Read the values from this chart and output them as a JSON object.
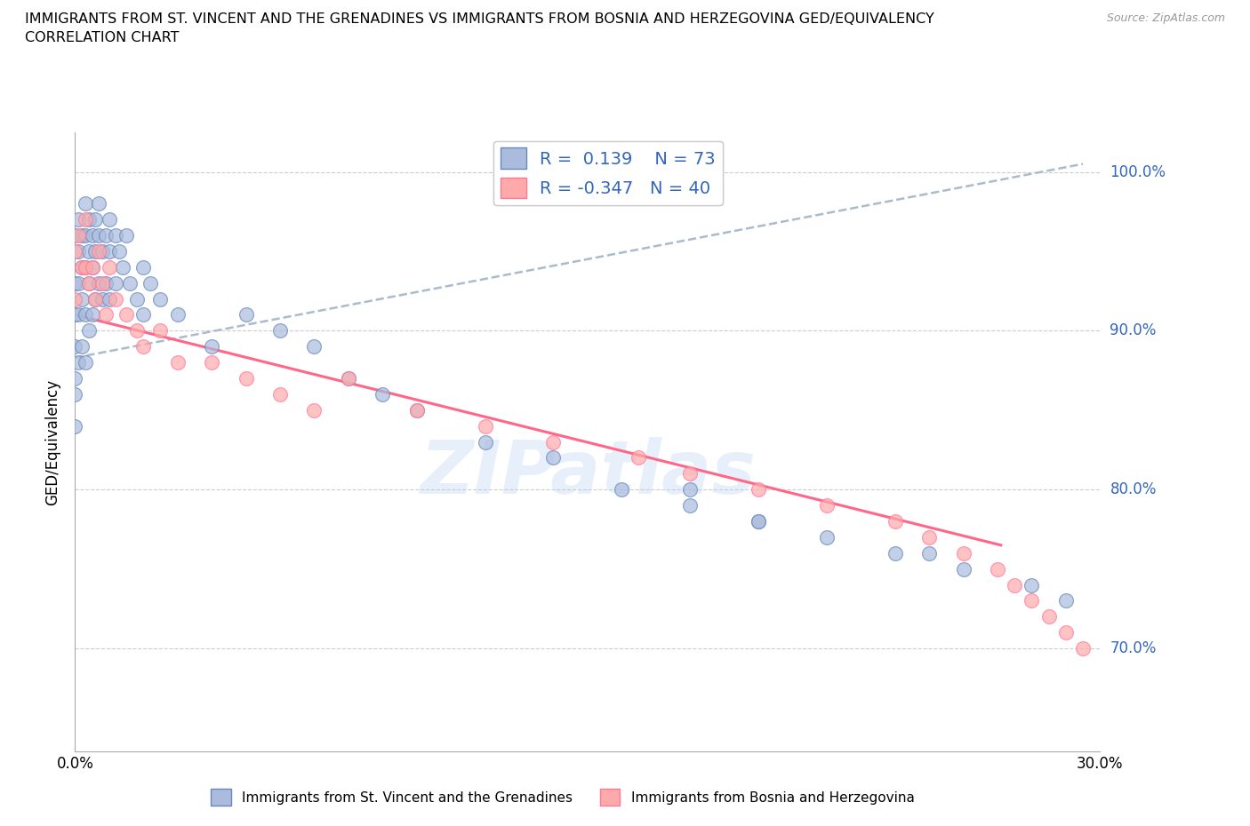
{
  "title_line1": "IMMIGRANTS FROM ST. VINCENT AND THE GRENADINES VS IMMIGRANTS FROM BOSNIA AND HERZEGOVINA GED/EQUIVALENCY",
  "title_line2": "CORRELATION CHART",
  "source": "Source: ZipAtlas.com",
  "ylabel": "GED/Equivalency",
  "xlim": [
    0.0,
    0.3
  ],
  "ylim": [
    0.635,
    1.025
  ],
  "blue_R": 0.139,
  "blue_N": 73,
  "pink_R": -0.347,
  "pink_N": 40,
  "blue_color": "#AABBDD",
  "pink_color": "#FFAAAA",
  "blue_edge_color": "#6688BB",
  "pink_edge_color": "#FF7799",
  "blue_trend_color": "#AABBCC",
  "pink_trend_color": "#FF6688",
  "watermark": "ZIPatlas",
  "watermark_color": "#AACCEE",
  "legend_label_blue": "Immigrants from St. Vincent and the Grenadines",
  "legend_label_pink": "Immigrants from Bosnia and Herzegovina",
  "y_tick_vals": [
    0.7,
    0.8,
    0.9,
    1.0
  ],
  "y_tick_labels": [
    "70.0%",
    "80.0%",
    "90.0%",
    "100.0%"
  ],
  "blue_scatter_x": [
    0.0,
    0.0,
    0.0,
    0.0,
    0.0,
    0.0,
    0.0,
    0.001,
    0.001,
    0.001,
    0.001,
    0.001,
    0.002,
    0.002,
    0.002,
    0.002,
    0.003,
    0.003,
    0.003,
    0.003,
    0.003,
    0.004,
    0.004,
    0.004,
    0.004,
    0.005,
    0.005,
    0.005,
    0.006,
    0.006,
    0.006,
    0.007,
    0.007,
    0.007,
    0.008,
    0.008,
    0.009,
    0.009,
    0.01,
    0.01,
    0.01,
    0.012,
    0.012,
    0.013,
    0.014,
    0.015,
    0.016,
    0.018,
    0.02,
    0.02,
    0.022,
    0.025,
    0.03,
    0.04,
    0.05,
    0.06,
    0.07,
    0.08,
    0.09,
    0.1,
    0.12,
    0.14,
    0.16,
    0.18,
    0.2,
    0.22,
    0.24,
    0.26,
    0.28,
    0.29,
    0.18,
    0.25,
    0.2
  ],
  "blue_scatter_y": [
    0.96,
    0.93,
    0.91,
    0.89,
    0.87,
    0.86,
    0.84,
    0.97,
    0.95,
    0.93,
    0.91,
    0.88,
    0.96,
    0.94,
    0.92,
    0.89,
    0.98,
    0.96,
    0.94,
    0.91,
    0.88,
    0.97,
    0.95,
    0.93,
    0.9,
    0.96,
    0.94,
    0.91,
    0.97,
    0.95,
    0.92,
    0.98,
    0.96,
    0.93,
    0.95,
    0.92,
    0.96,
    0.93,
    0.97,
    0.95,
    0.92,
    0.96,
    0.93,
    0.95,
    0.94,
    0.96,
    0.93,
    0.92,
    0.94,
    0.91,
    0.93,
    0.92,
    0.91,
    0.89,
    0.91,
    0.9,
    0.89,
    0.87,
    0.86,
    0.85,
    0.83,
    0.82,
    0.8,
    0.79,
    0.78,
    0.77,
    0.76,
    0.75,
    0.74,
    0.73,
    0.8,
    0.76,
    0.78
  ],
  "pink_scatter_x": [
    0.0,
    0.0,
    0.001,
    0.002,
    0.003,
    0.003,
    0.004,
    0.005,
    0.006,
    0.007,
    0.008,
    0.009,
    0.01,
    0.012,
    0.015,
    0.018,
    0.02,
    0.025,
    0.03,
    0.04,
    0.05,
    0.06,
    0.07,
    0.08,
    0.1,
    0.12,
    0.14,
    0.165,
    0.18,
    0.2,
    0.22,
    0.24,
    0.25,
    0.26,
    0.27,
    0.275,
    0.28,
    0.285,
    0.29,
    0.295
  ],
  "pink_scatter_y": [
    0.95,
    0.92,
    0.96,
    0.94,
    0.97,
    0.94,
    0.93,
    0.94,
    0.92,
    0.95,
    0.93,
    0.91,
    0.94,
    0.92,
    0.91,
    0.9,
    0.89,
    0.9,
    0.88,
    0.88,
    0.87,
    0.86,
    0.85,
    0.87,
    0.85,
    0.84,
    0.83,
    0.82,
    0.81,
    0.8,
    0.79,
    0.78,
    0.77,
    0.76,
    0.75,
    0.74,
    0.73,
    0.72,
    0.71,
    0.7
  ],
  "blue_trend_x0": 0.0,
  "blue_trend_x1": 0.295,
  "blue_trend_y0": 0.883,
  "blue_trend_y1": 1.005,
  "pink_trend_x0": 0.0,
  "pink_trend_x1": 0.271,
  "pink_trend_y0": 0.91,
  "pink_trend_y1": 0.765
}
